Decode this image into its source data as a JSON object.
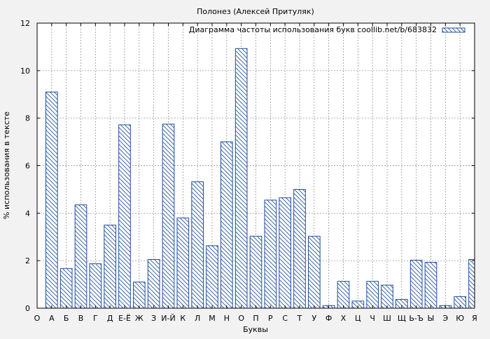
{
  "chart_data": {
    "type": "bar",
    "title": "Полонез (Алексей Притуляк)",
    "xlabel": "Буквы",
    "ylabel": "% использования в тексте",
    "legend": "Диаграмма частоты использования букв coollib.net/b/683832",
    "legend_position": "top-right",
    "grid": true,
    "ylim": [
      0,
      12
    ],
    "yticks": [
      "0",
      "2",
      "4",
      "6",
      "8",
      "10",
      "12"
    ],
    "categories": [
      "О",
      "А",
      "Б",
      "В",
      "Г",
      "Д",
      "Е-Ё",
      "Ж",
      "З",
      "И-Й",
      "К",
      "Л",
      "М",
      "Н",
      "О",
      "П",
      "Р",
      "С",
      "Т",
      "У",
      "Ф",
      "Х",
      "Ц",
      "Ч",
      "Ш",
      "Щ",
      "Ь-Ъ",
      "Ы",
      "Э",
      "Ю",
      "Я"
    ],
    "values": [
      null,
      9.1,
      1.67,
      4.35,
      1.87,
      3.5,
      7.72,
      1.1,
      2.05,
      7.75,
      3.8,
      5.32,
      2.63,
      7.0,
      10.93,
      3.03,
      4.55,
      4.65,
      5.0,
      3.03,
      0.11,
      1.13,
      0.3,
      1.13,
      0.97,
      0.37,
      2.02,
      1.93,
      0.11,
      0.49,
      2.05
    ],
    "colors": {
      "bar_stroke": "#1f4e9e",
      "grid": "#888888",
      "plot_bg": "#ffffff",
      "page_bg": "#f2f2f2"
    }
  }
}
